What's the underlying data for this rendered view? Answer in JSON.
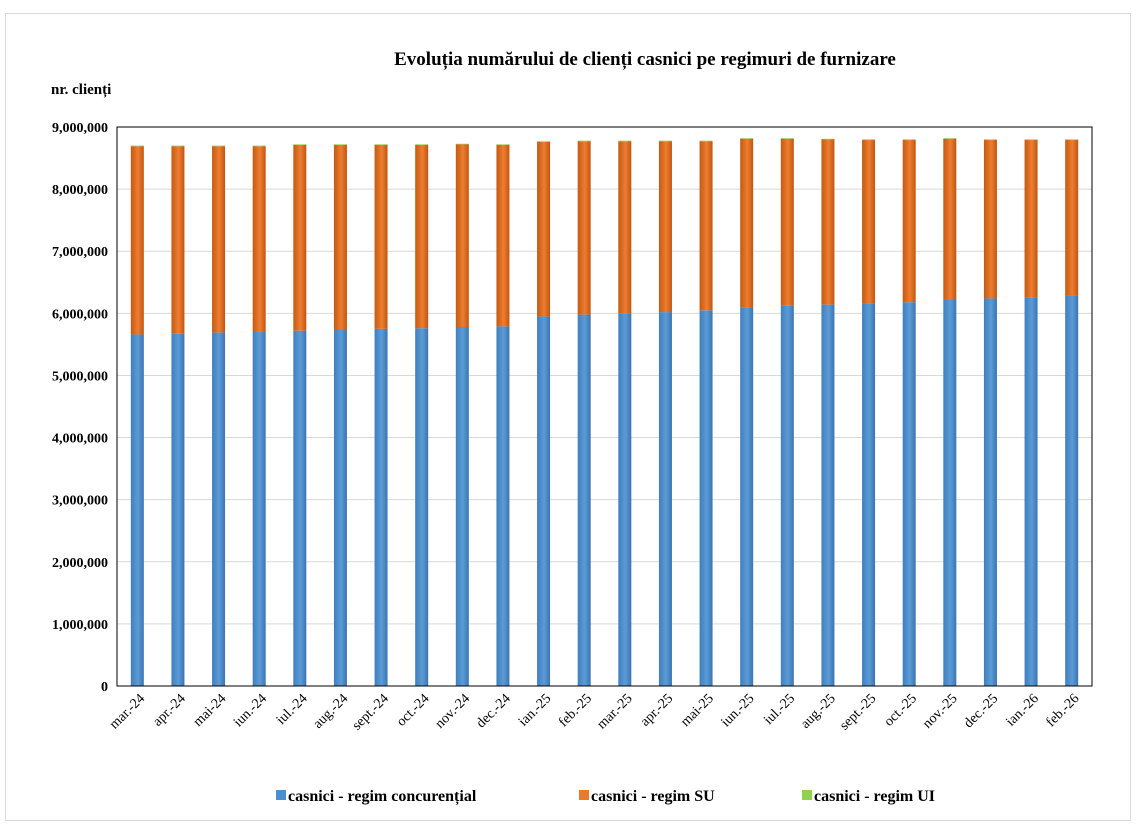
{
  "chart_data": {
    "type": "bar",
    "stacked": true,
    "title": "Evoluția numărului de clienți casnici pe regimuri de furnizare",
    "ylabel": "nr. clienți",
    "xlabel": "",
    "ylim": [
      0,
      9000000
    ],
    "yticks": [
      "0",
      "1,000,000",
      "2,000,000",
      "3,000,000",
      "4,000,000",
      "5,000,000",
      "6,000,000",
      "7,000,000",
      "8,000,000",
      "9,000,000"
    ],
    "ytick_values": [
      0,
      1000000,
      2000000,
      3000000,
      4000000,
      5000000,
      6000000,
      7000000,
      8000000,
      9000000
    ],
    "grid": true,
    "legend_position": "bottom",
    "categories": [
      "mar.-24",
      "apr.-24",
      "mai-24",
      "iun.-24",
      "iul.-24",
      "aug.-24",
      "sept.-24",
      "oct.-24",
      "nov.-24",
      "dec.-24",
      "ian.-25",
      "feb.-25",
      "mar.-25",
      "apr.-25",
      "mai-25",
      "iun.-25",
      "iul.-25",
      "aug.-25",
      "sept.-25",
      "oct.-25",
      "nov.-25",
      "dec.-25",
      "ian.-26",
      "feb.-26"
    ],
    "series": [
      {
        "name": "casnici - regim concurențial",
        "color": "#4a8fd0",
        "values": [
          5660000,
          5670000,
          5690000,
          5700000,
          5720000,
          5740000,
          5750000,
          5760000,
          5780000,
          5790000,
          5950000,
          5980000,
          6000000,
          6020000,
          6050000,
          6100000,
          6120000,
          6140000,
          6160000,
          6180000,
          6230000,
          6240000,
          6260000,
          6280000
        ]
      },
      {
        "name": "casnici - regim SU",
        "color": "#e87b2a",
        "values": [
          3030000,
          3020000,
          3000000,
          2990000,
          2990000,
          2970000,
          2960000,
          2950000,
          2940000,
          2920000,
          2810000,
          2790000,
          2770000,
          2750000,
          2720000,
          2710000,
          2690000,
          2660000,
          2630000,
          2610000,
          2580000,
          2550000,
          2530000,
          2510000
        ]
      },
      {
        "name": "casnici - regim UI",
        "color": "#92d050",
        "values": [
          2000,
          2000,
          2000,
          2000,
          2000,
          2000,
          2000,
          2000,
          2000,
          2000,
          2000,
          2000,
          2000,
          2000,
          2000,
          2000,
          2000,
          2000,
          2000,
          2000,
          2000,
          2000,
          2000,
          2000
        ]
      }
    ]
  }
}
